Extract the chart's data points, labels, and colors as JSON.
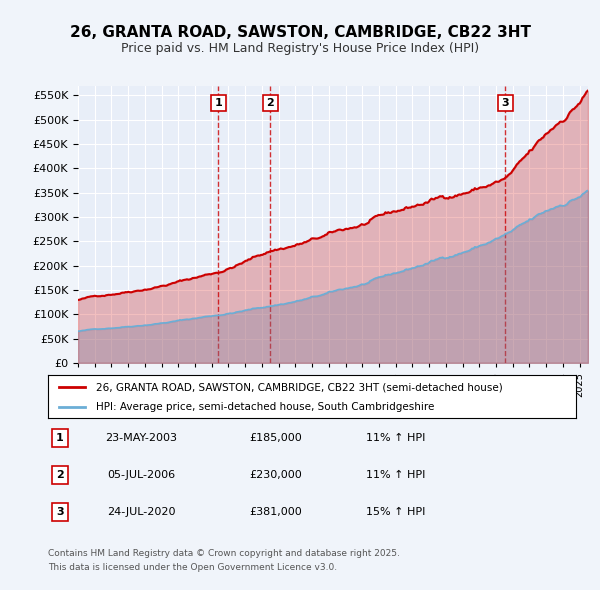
{
  "title_line1": "26, GRANTA ROAD, SAWSTON, CAMBRIDGE, CB22 3HT",
  "title_line2": "Price paid vs. HM Land Registry's House Price Index (HPI)",
  "ytick_values": [
    0,
    50000,
    100000,
    150000,
    200000,
    250000,
    300000,
    350000,
    400000,
    450000,
    500000,
    550000
  ],
  "ylim": [
    0,
    570000
  ],
  "xlim_start": 1995.0,
  "xlim_end": 2025.5,
  "sale_dates": [
    2003.39,
    2006.51,
    2020.56
  ],
  "sale_prices": [
    185000,
    230000,
    381000
  ],
  "sale_labels": [
    "1",
    "2",
    "3"
  ],
  "sale_date_strs": [
    "23-MAY-2003",
    "05-JUL-2006",
    "24-JUL-2020"
  ],
  "sale_price_strs": [
    "£185,000",
    "£230,000",
    "£381,000"
  ],
  "sale_hpi_strs": [
    "11% ↑ HPI",
    "11% ↑ HPI",
    "15% ↑ HPI"
  ],
  "hpi_line_color": "#6baed6",
  "price_line_color": "#cc0000",
  "vline_color": "#cc0000",
  "background_color": "#f0f4fa",
  "plot_bg_color": "#e8eef8",
  "grid_color": "#ffffff",
  "legend_line1": "26, GRANTA ROAD, SAWSTON, CAMBRIDGE, CB22 3HT (semi-detached house)",
  "legend_line2": "HPI: Average price, semi-detached house, South Cambridgeshire",
  "footer_line1": "Contains HM Land Registry data © Crown copyright and database right 2025.",
  "footer_line2": "This data is licensed under the Open Government Licence v3.0."
}
